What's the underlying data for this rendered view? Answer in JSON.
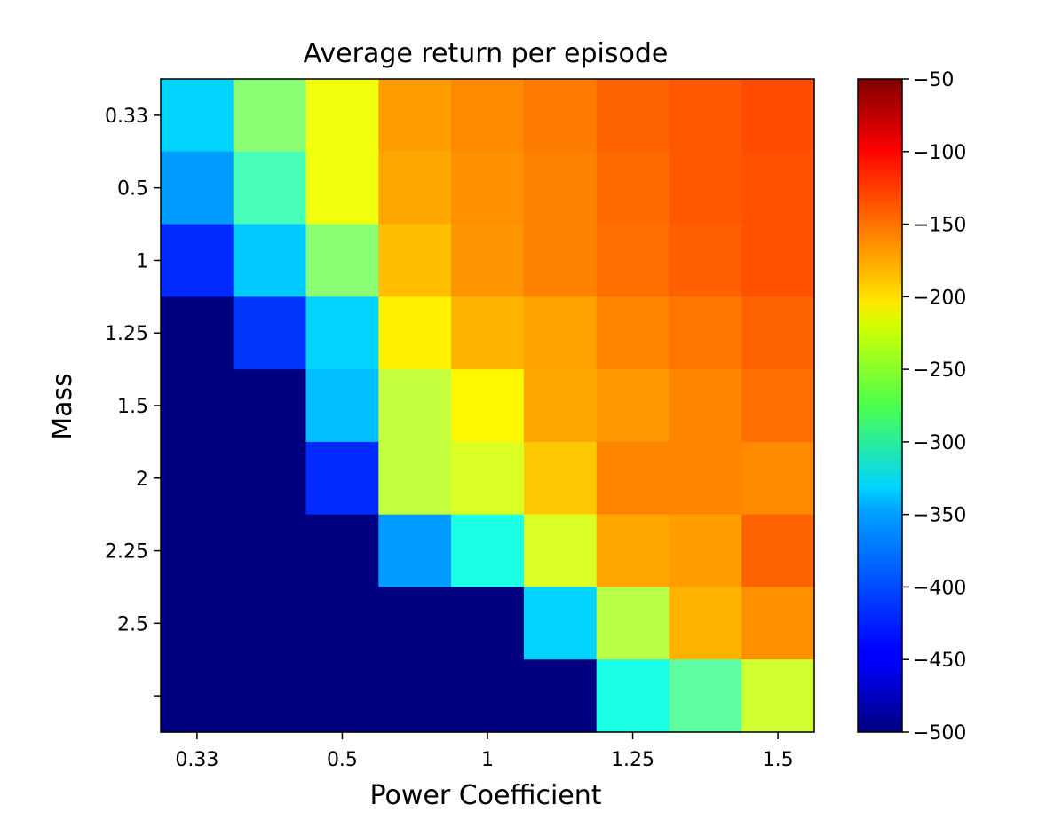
{
  "chart_data": {
    "type": "heatmap",
    "title": "Average return per episode",
    "xlabel": "Power Coefficient",
    "ylabel": "Mass",
    "x_tick_labels": [
      "0.33",
      "0.5",
      "1",
      "1.25",
      "1.5"
    ],
    "y_tick_labels": [
      "0.33",
      "0.5",
      "1",
      "1.25",
      "1.5",
      "2",
      "2.25",
      "2.5",
      ""
    ],
    "columns": 9,
    "rows": 9,
    "values": [
      [
        -350,
        -270,
        -225,
        -175,
        -167,
        -160,
        -150,
        -145,
        -140
      ],
      [
        -375,
        -300,
        -225,
        -180,
        -170,
        -163,
        -153,
        -145,
        -142
      ],
      [
        -425,
        -355,
        -270,
        -190,
        -172,
        -163,
        -155,
        -148,
        -142
      ],
      [
        -500,
        -420,
        -350,
        -212,
        -185,
        -178,
        -165,
        -158,
        -150
      ],
      [
        -500,
        -500,
        -360,
        -245,
        -215,
        -180,
        -173,
        -165,
        -155
      ],
      [
        -500,
        -500,
        -425,
        -245,
        -235,
        -195,
        -165,
        -165,
        -167
      ],
      [
        -500,
        -500,
        -500,
        -375,
        -320,
        -235,
        -180,
        -175,
        -150
      ],
      [
        -500,
        -500,
        -500,
        -500,
        -500,
        -350,
        -250,
        -185,
        -170
      ],
      [
        -500,
        -500,
        -500,
        -500,
        -500,
        -500,
        -320,
        -290,
        -240
      ]
    ],
    "colormap": "jet",
    "colorbar": {
      "min": -500,
      "max": -50,
      "ticks": [
        -50,
        -100,
        -150,
        -200,
        -250,
        -300,
        -350,
        -400,
        -450,
        -500
      ],
      "tick_labels": [
        "−50",
        "−100",
        "−150",
        "−200",
        "−250",
        "−300",
        "−350",
        "−400",
        "−450",
        "−500"
      ]
    },
    "grid": false
  }
}
